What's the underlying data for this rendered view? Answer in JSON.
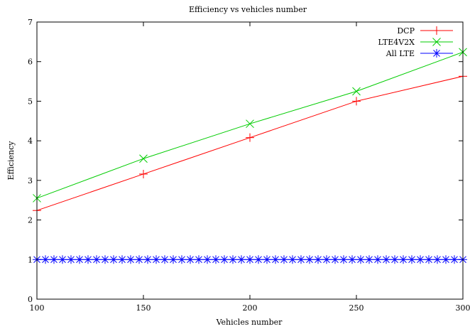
{
  "chart_data": {
    "type": "line",
    "title": "Efficiency vs vehicles number",
    "xlabel": "Vehicles number",
    "ylabel": "Efficiency",
    "xlim": [
      100,
      300
    ],
    "ylim": [
      0,
      7
    ],
    "xticks": [
      100,
      150,
      200,
      250,
      300
    ],
    "yticks": [
      0,
      1,
      2,
      3,
      4,
      5,
      6,
      7
    ],
    "grid": false,
    "legend_position": "top-right",
    "series": [
      {
        "name": "DCP",
        "color": "#ff0000",
        "marker": "plus",
        "x": [
          100,
          150,
          200,
          250,
          300
        ],
        "values": [
          2.24,
          3.16,
          4.08,
          5.0,
          5.63
        ]
      },
      {
        "name": "LTE4V2X",
        "color": "#00cc00",
        "marker": "cross",
        "x": [
          100,
          150,
          200,
          250,
          300
        ],
        "values": [
          2.55,
          3.55,
          4.43,
          5.25,
          6.24
        ]
      },
      {
        "name": "All LTE",
        "color": "#0000ff",
        "marker": "star",
        "x": [
          100,
          104,
          108,
          112,
          116,
          120,
          124,
          128,
          132,
          136,
          140,
          144,
          148,
          152,
          156,
          160,
          164,
          168,
          172,
          176,
          180,
          184,
          188,
          192,
          196,
          200,
          204,
          208,
          212,
          216,
          220,
          224,
          228,
          232,
          236,
          240,
          244,
          248,
          252,
          256,
          260,
          264,
          268,
          272,
          276,
          280,
          284,
          288,
          292,
          296,
          300
        ],
        "values": [
          1,
          1,
          1,
          1,
          1,
          1,
          1,
          1,
          1,
          1,
          1,
          1,
          1,
          1,
          1,
          1,
          1,
          1,
          1,
          1,
          1,
          1,
          1,
          1,
          1,
          1,
          1,
          1,
          1,
          1,
          1,
          1,
          1,
          1,
          1,
          1,
          1,
          1,
          1,
          1,
          1,
          1,
          1,
          1,
          1,
          1,
          1,
          1,
          1,
          1,
          1
        ]
      }
    ]
  }
}
